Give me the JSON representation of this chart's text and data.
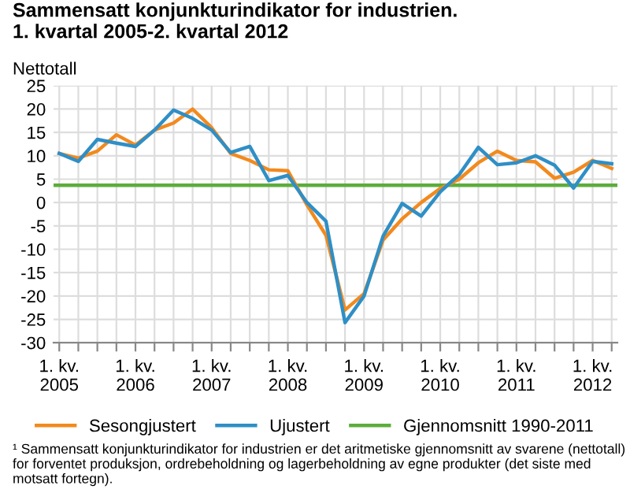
{
  "chart_data": {
    "type": "line",
    "title": "Sammensatt konjunkturindikator for industrien.\n1. kvartal 2005-2. kvartal 2012",
    "ylabel": "Nettotall",
    "categories": [
      "1. kv.\n2005",
      null,
      null,
      null,
      "1. kv.\n2006",
      null,
      null,
      null,
      "1. kv.\n2007",
      null,
      null,
      null,
      "1. kv.\n2008",
      null,
      null,
      null,
      "1. kv.\n2009",
      null,
      null,
      null,
      "1. kv.\n2010",
      null,
      null,
      null,
      "1. kv.\n2011",
      null,
      null,
      null,
      "1. kv.\n2012",
      null
    ],
    "series": [
      {
        "name": "Sesongjustert",
        "color": "#f28a1e",
        "values": [
          10.5,
          9.5,
          11,
          14.5,
          12.3,
          15.5,
          17,
          20,
          16,
          10.5,
          9,
          7,
          6.8,
          -0.5,
          -7,
          -23,
          -19.5,
          -8,
          -3.5,
          0,
          3,
          5,
          8.5,
          11,
          9,
          8.7,
          5.2,
          6.5,
          9,
          7.3
        ]
      },
      {
        "name": "Ujustert",
        "color": "#2f8fc6",
        "values": [
          10.5,
          8.8,
          13.5,
          12.7,
          12,
          15.5,
          19.8,
          18,
          15.5,
          10.7,
          12,
          4.7,
          5.8,
          0,
          -4,
          -25.7,
          -20,
          -7.2,
          -0.2,
          -2.9,
          2.3,
          6,
          11.8,
          8.1,
          8.5,
          10,
          8,
          3.1,
          8.8,
          8.3
        ]
      }
    ],
    "ref_lines": [
      {
        "axis": "y",
        "value": 3.7,
        "label": "Gjennomsnitt 1990-2011",
        "color": "#5dad3c"
      }
    ],
    "ylim": [
      -30,
      25
    ],
    "yticks": [
      -30,
      -25,
      -20,
      -15,
      -10,
      -5,
      0,
      5,
      10,
      15,
      20,
      25
    ],
    "grid": true,
    "legend": "bottom",
    "marker": "none",
    "line_style": "solid",
    "annotations": [
      "¹ Sammensatt konjunkturindikator for industrien er det aritmetiske gjennomsnitt av svarene (nettotall) for forventet produksjon, ordrebeholdning og lagerbeholdning av egne produkter (det siste med motsatt fortegn)."
    ]
  }
}
